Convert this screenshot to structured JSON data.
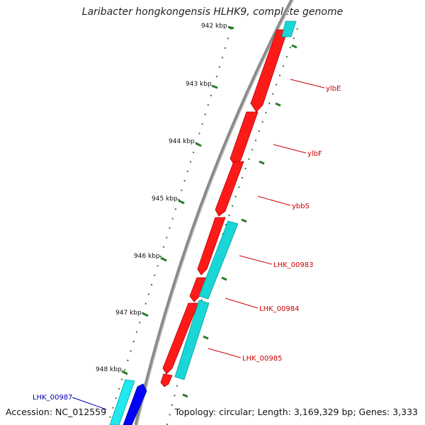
{
  "title": "Laribacter hongkongensis HLHK9, complete genome",
  "accession": "Accession: NC_012559",
  "summary": "Topology: circular; Length: 3,169,329 bp; Genes: 3,333",
  "scale_ticks": [
    "942 kbp",
    "943 kbp",
    "944 kbp",
    "945 kbp",
    "946 kbp",
    "947 kbp",
    "948 kbp"
  ],
  "gene_labels": [
    {
      "text": "ylbE",
      "strand": "forward"
    },
    {
      "text": "ylbF",
      "strand": "forward"
    },
    {
      "text": "ybbS",
      "strand": "forward"
    },
    {
      "text": "LHK_00983",
      "strand": "forward"
    },
    {
      "text": "LHK_00984",
      "strand": "forward"
    },
    {
      "text": "LHK_00985",
      "strand": "forward"
    },
    {
      "text": "LHK_00987",
      "strand": "reverse"
    }
  ],
  "colors": {
    "forward_gene": "#ff0000",
    "reverse_gene": "#0000ff",
    "forward_cds": "#00cccc",
    "reverse_cds": "#00e5ee",
    "backbone": "#888888",
    "ticks": "#2a7a2a",
    "forward_label": "#cc0000",
    "reverse_label": "#0000aa"
  }
}
